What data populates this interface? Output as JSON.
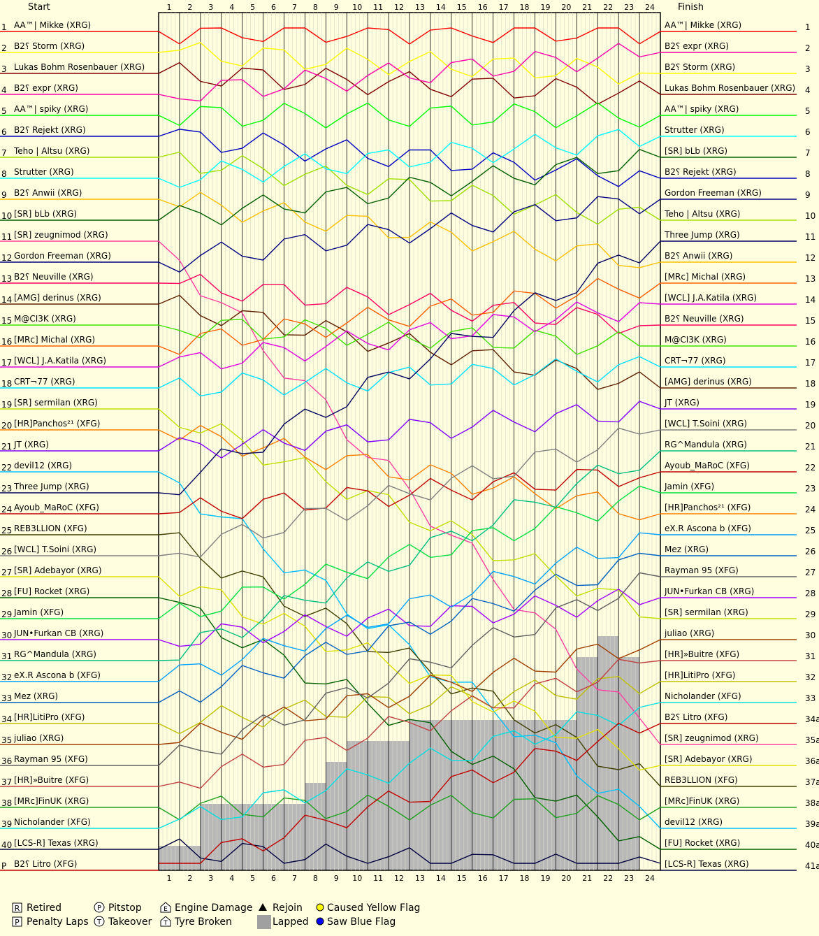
{
  "header": {
    "start": "Start",
    "finish": "Finish"
  },
  "chart_data": {
    "type": "line",
    "laps": 24,
    "lap_labels": [
      "1",
      "2",
      "3",
      "4",
      "5",
      "6",
      "7",
      "8",
      "9",
      "10",
      "11",
      "12",
      "13",
      "14",
      "15",
      "16",
      "17",
      "18",
      "19",
      "20",
      "21",
      "22",
      "23",
      "24"
    ],
    "start_positions": [
      {
        "pos": "1",
        "driver": "AA™| Mikke (XRG)",
        "color": "#ff0000"
      },
      {
        "pos": "2",
        "driver": "B2؟ Storm (XRG)",
        "color": "#ffff00"
      },
      {
        "pos": "3",
        "driver": "Lukas Bohm Rosenbauer (XRG)",
        "color": "#800000"
      },
      {
        "pos": "4",
        "driver": "B2؟ expr (XRG)",
        "color": "#ff00aa"
      },
      {
        "pos": "5",
        "driver": "AA™| spiky (XRG)",
        "color": "#00ff00"
      },
      {
        "pos": "6",
        "driver": "B2؟ Rejekt (XRG)",
        "color": "#0000c0"
      },
      {
        "pos": "7",
        "driver": "Teho | Altsu (XRG)",
        "color": "#a0e000"
      },
      {
        "pos": "8",
        "driver": "Strutter (XRG)",
        "color": "#00ffff"
      },
      {
        "pos": "9",
        "driver": "B2؟ Anwii (XRG)",
        "color": "#ffc000"
      },
      {
        "pos": "10",
        "driver": "[SR] bLb (XRG)",
        "color": "#006000"
      },
      {
        "pos": "11",
        "driver": "[SR] zeugnimod (XRG)",
        "color": "#ff40a0"
      },
      {
        "pos": "12",
        "driver": "Gordon Freeman (XRG)",
        "color": "#000080"
      },
      {
        "pos": "13",
        "driver": "B2؟ Neuville (XRG)",
        "color": "#ff0060"
      },
      {
        "pos": "14",
        "driver": "[AMG] derinus (XRG)",
        "color": "#602000"
      },
      {
        "pos": "15",
        "driver": "M@CI3K (XRG)",
        "color": "#40e000"
      },
      {
        "pos": "16",
        "driver": "[MRc] Michal (XRG)",
        "color": "#ff6000"
      },
      {
        "pos": "17",
        "driver": "[WCL] J.A.Katila (XRG)",
        "color": "#e000e0"
      },
      {
        "pos": "18",
        "driver": "CRT¬77 (XRG)",
        "color": "#00e0ff"
      },
      {
        "pos": "19",
        "driver": "[SR] sermilan (XRG)",
        "color": "#c0e000"
      },
      {
        "pos": "20",
        "driver": "[HR]Panchos²¹ (XFG)",
        "color": "#ff8000"
      },
      {
        "pos": "21",
        "driver": "JT (XRG)",
        "color": "#8000ff"
      },
      {
        "pos": "22",
        "driver": "devil12 (XRG)",
        "color": "#00c0ff"
      },
      {
        "pos": "23",
        "driver": "Three Jump (XRG)",
        "color": "#000060"
      },
      {
        "pos": "24",
        "driver": "Ayoub_MaRoC (XFG)",
        "color": "#c00000"
      },
      {
        "pos": "25",
        "driver": "REB3LLION (XFG)",
        "color": "#404000"
      },
      {
        "pos": "26",
        "driver": "[WCL] T.Soini (XRG)",
        "color": "#808080"
      },
      {
        "pos": "27",
        "driver": "[SR] Adebayor (XRG)",
        "color": "#e0e000"
      },
      {
        "pos": "28",
        "driver": "[FU] Rocket (XRG)",
        "color": "#006000"
      },
      {
        "pos": "29",
        "driver": "Jamin (XFG)",
        "color": "#00e040"
      },
      {
        "pos": "30",
        "driver": "JUN•Furkan CB (XRG)",
        "color": "#a000ff"
      },
      {
        "pos": "31",
        "driver": "RG^Mandula (XRG)",
        "color": "#00c080"
      },
      {
        "pos": "32",
        "driver": "eX.R Ascona b (XFG)",
        "color": "#00a0ff"
      },
      {
        "pos": "33",
        "driver": "Mez (XRG)",
        "color": "#0060c0"
      },
      {
        "pos": "34",
        "driver": "[HR]LitiPro (XFG)",
        "color": "#c0c000"
      },
      {
        "pos": "35",
        "driver": "juliao (XRG)",
        "color": "#a04000"
      },
      {
        "pos": "36",
        "driver": "Rayman 95 (XFG)",
        "color": "#606060"
      },
      {
        "pos": "37",
        "driver": "[HR]»Buitre (XFG)",
        "color": "#c04040"
      },
      {
        "pos": "38",
        "driver": "[MRc]FinUK (XRG)",
        "color": "#20a020"
      },
      {
        "pos": "39",
        "driver": "Nicholander (XFG)",
        "color": "#00e0e0"
      },
      {
        "pos": "40",
        "driver": "[LCS-R] Texas (XRG)",
        "color": "#000040"
      },
      {
        "pos": "P",
        "driver": "B2؟ Litro (XFG)",
        "color": "#c00000"
      }
    ],
    "finish_positions": [
      {
        "pos": "1",
        "driver": "AA™| Mikke (XRG)",
        "color": "#ff0000"
      },
      {
        "pos": "2",
        "driver": "B2؟ expr (XRG)",
        "color": "#ff00aa"
      },
      {
        "pos": "3",
        "driver": "B2؟ Storm (XRG)",
        "color": "#ffff00"
      },
      {
        "pos": "4",
        "driver": "Lukas Bohm Rosenbauer (XRG)",
        "color": "#800000"
      },
      {
        "pos": "5",
        "driver": "AA™| spiky (XRG)",
        "color": "#00ff00"
      },
      {
        "pos": "6",
        "driver": "Strutter (XRG)",
        "color": "#00ffff"
      },
      {
        "pos": "7",
        "driver": "[SR] bLb (XRG)",
        "color": "#006000"
      },
      {
        "pos": "8",
        "driver": "B2؟ Rejekt (XRG)",
        "color": "#0000c0"
      },
      {
        "pos": "9",
        "driver": "Gordon Freeman (XRG)",
        "color": "#000080"
      },
      {
        "pos": "10",
        "driver": "Teho | Altsu (XRG)",
        "color": "#a0e000"
      },
      {
        "pos": "11",
        "driver": "Three Jump (XRG)",
        "color": "#000060"
      },
      {
        "pos": "12",
        "driver": "B2؟ Anwii (XRG)",
        "color": "#ffc000"
      },
      {
        "pos": "13",
        "driver": "[MRc] Michal (XRG)",
        "color": "#ff6000"
      },
      {
        "pos": "14",
        "driver": "[WCL] J.A.Katila (XRG)",
        "color": "#e000e0"
      },
      {
        "pos": "15",
        "driver": "B2؟ Neuville (XRG)",
        "color": "#ff0060"
      },
      {
        "pos": "16",
        "driver": "M@CI3K (XRG)",
        "color": "#40e000"
      },
      {
        "pos": "17",
        "driver": "CRT¬77 (XRG)",
        "color": "#00e0ff"
      },
      {
        "pos": "18",
        "driver": "[AMG] derinus (XRG)",
        "color": "#602000"
      },
      {
        "pos": "19",
        "driver": "JT (XRG)",
        "color": "#8000ff"
      },
      {
        "pos": "20",
        "driver": "[WCL] T.Soini (XRG)",
        "color": "#808080"
      },
      {
        "pos": "21",
        "driver": "RG^Mandula (XRG)",
        "color": "#00c080"
      },
      {
        "pos": "22",
        "driver": "Ayoub_MaRoC (XFG)",
        "color": "#c00000"
      },
      {
        "pos": "23",
        "driver": "Jamin (XFG)",
        "color": "#00e040"
      },
      {
        "pos": "24",
        "driver": "[HR]Panchos²¹ (XFG)",
        "color": "#ff8000"
      },
      {
        "pos": "25",
        "driver": "eX.R Ascona b (XFG)",
        "color": "#00a0ff"
      },
      {
        "pos": "26",
        "driver": "Mez (XRG)",
        "color": "#0060c0"
      },
      {
        "pos": "27",
        "driver": "Rayman 95 (XFG)",
        "color": "#606060"
      },
      {
        "pos": "28",
        "driver": "JUN•Furkan CB (XRG)",
        "color": "#a000ff"
      },
      {
        "pos": "29",
        "driver": "[SR] sermilan (XRG)",
        "color": "#c0e000"
      },
      {
        "pos": "30",
        "driver": "juliao (XRG)",
        "color": "#a04000"
      },
      {
        "pos": "31",
        "driver": "[HR]»Buitre (XFG)",
        "color": "#c04040"
      },
      {
        "pos": "32",
        "driver": "[HR]LitiPro (XFG)",
        "color": "#c0c000"
      },
      {
        "pos": "33",
        "driver": "Nicholander (XFG)",
        "color": "#00e0e0"
      },
      {
        "pos": "34a",
        "driver": "B2؟ Litro (XFG)",
        "color": "#c00000"
      },
      {
        "pos": "35a",
        "driver": "[SR] zeugnimod (XRG)",
        "color": "#ff40a0"
      },
      {
        "pos": "36a",
        "driver": "[SR] Adebayor (XRG)",
        "color": "#e0e000"
      },
      {
        "pos": "37a",
        "driver": "REB3LLION (XFG)",
        "color": "#404000"
      },
      {
        "pos": "38a",
        "driver": "[MRc]FinUK (XRG)",
        "color": "#20a020"
      },
      {
        "pos": "39a",
        "driver": "devil12 (XRG)",
        "color": "#00c0ff"
      },
      {
        "pos": "40a",
        "driver": "[FU] Rocket (XRG)",
        "color": "#006000"
      },
      {
        "pos": "41a",
        "driver": "[LCS-R] Texas (XRG)",
        "color": "#000040"
      }
    ],
    "lapped_rows_per_lap": [
      2,
      2,
      4,
      4,
      4,
      4,
      4,
      5,
      6,
      7,
      7,
      7,
      8,
      8,
      8,
      8,
      8,
      8,
      8,
      8,
      11,
      12,
      11,
      0
    ],
    "legend": [
      {
        "icon": "R",
        "label": "Retired"
      },
      {
        "icon": "P-circle",
        "label": "Pitstop"
      },
      {
        "icon": "E",
        "label": "Engine Damage"
      },
      {
        "icon": "triangle",
        "label": "Rejoin"
      },
      {
        "icon": "yellow-dot",
        "label": "Caused Yellow Flag"
      },
      {
        "icon": "P-square",
        "label": "Penalty Laps"
      },
      {
        "icon": "T",
        "label": "Takeover"
      },
      {
        "icon": "tyre",
        "label": "Tyre Broken"
      },
      {
        "icon": "grey-square",
        "label": "Lapped"
      },
      {
        "icon": "blue-dot",
        "label": "Saw Blue Flag"
      }
    ],
    "grid": true
  }
}
